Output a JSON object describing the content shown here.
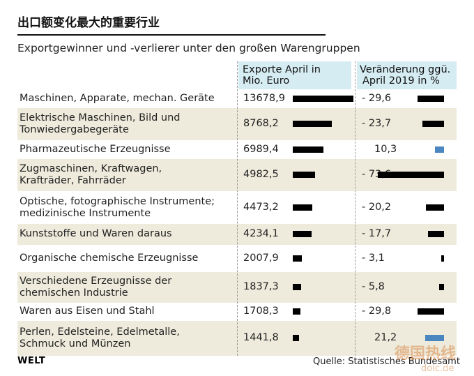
{
  "title": "出口额变化最大的重要行业",
  "subtitle": "Exportgewinner und -verlierer unter den großen Warengruppen",
  "columns": {
    "exports_line1": "Exporte April in",
    "exports_line2": "Mio. Euro",
    "change_line1": "Veränderung ggü.",
    "change_line2": "April 2019 in %"
  },
  "chart_data": {
    "type": "table",
    "units": {
      "exports": "Mio. Euro",
      "change": "%"
    },
    "rows": [
      {
        "label1": "Maschinen, Apparate, mechan. Geräte",
        "label2": "",
        "exports": 13678.9,
        "exports_text": "13678,9",
        "change": -29.6,
        "change_text": "- 29,6"
      },
      {
        "label1": "Elektrische Maschinen, Bild und",
        "label2": "Tonwiedergabegeräte",
        "exports": 8768.2,
        "exports_text": "8768,2",
        "change": -23.7,
        "change_text": "- 23,7"
      },
      {
        "label1": "Pharmazeutische Erzeugnisse",
        "label2": "",
        "exports": 6989.4,
        "exports_text": "6989,4",
        "change": 10.3,
        "change_text": "10,3"
      },
      {
        "label1": "Zugmaschinen, Kraftwagen,",
        "label2": "Krafträder, Fahrräder",
        "exports": 4982.5,
        "exports_text": "4982,5",
        "change": -73.6,
        "change_text": "- 73,6"
      },
      {
        "label1": "Optische, fotographische Instrumente;",
        "label2": "medizinische Instrumente",
        "exports": 4473.2,
        "exports_text": "4473,2",
        "change": -20.2,
        "change_text": "- 20,2"
      },
      {
        "label1": "Kunststoffe und Waren daraus",
        "label2": "",
        "exports": 4234.1,
        "exports_text": "4234,1",
        "change": -17.7,
        "change_text": "- 17,7"
      },
      {
        "label1": "Organische chemische Erzeugnisse",
        "label2": "",
        "exports": 2007.9,
        "exports_text": "2007,9",
        "change": -3.1,
        "change_text": "- 3,1"
      },
      {
        "label1": "Verschiedene Erzeugnisse der",
        "label2": "chemischen Industrie",
        "exports": 1837.3,
        "exports_text": "1837,3",
        "change": -5.8,
        "change_text": "- 5,8"
      },
      {
        "label1": "Waren aus Eisen und Stahl",
        "label2": "",
        "exports": 1708.3,
        "exports_text": "1708,3",
        "change": -29.8,
        "change_text": "- 29,8"
      },
      {
        "label1": "Perlen, Edelsteine, Edelmetalle,",
        "label2": "Schmuck und Münzen",
        "exports": 1441.8,
        "exports_text": "1441,8",
        "change": 21.2,
        "change_text": "21,2"
      }
    ]
  },
  "colors": {
    "negative_bar": "#000000",
    "positive_bar": "#4a86c0",
    "band": "#eeebdc",
    "header": "#d6ecf3"
  },
  "logo": "WELT",
  "source": "Quelle: Statistisches Bundesamt",
  "watermark": "德国热线 dolc.de"
}
